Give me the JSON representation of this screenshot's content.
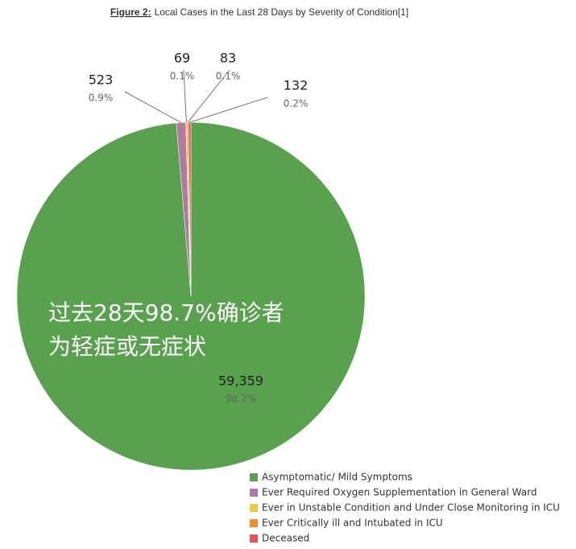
{
  "chart_data": {
    "type": "pie",
    "title_prefix": "Figure 2:",
    "title": "Local Cases in the Last 28 Days by Severity of Condition[1]",
    "annotation_lines": [
      "过去28天98.7%确诊者",
      "为轻症或无症状"
    ],
    "categories": [
      "Asymptomatic/ Mild Symptoms",
      "Ever Required Oxygen Supplementation in General Ward",
      "Ever in Unstable Condition and Under Close Monitoring in ICU",
      "Ever Critically ill and Intubated in ICU",
      "Deceased"
    ],
    "values": [
      59359,
      523,
      69,
      83,
      132
    ],
    "value_labels": [
      "59,359",
      "523",
      "69",
      "83",
      "132"
    ],
    "percent_labels": [
      "98.7%",
      "0.9%",
      "0.1%",
      "0.1%",
      "0.2%"
    ],
    "colors": [
      "#59a14f",
      "#b07aa1",
      "#edc948",
      "#f28e2b",
      "#e15759"
    ],
    "legend": "bottom-right"
  }
}
